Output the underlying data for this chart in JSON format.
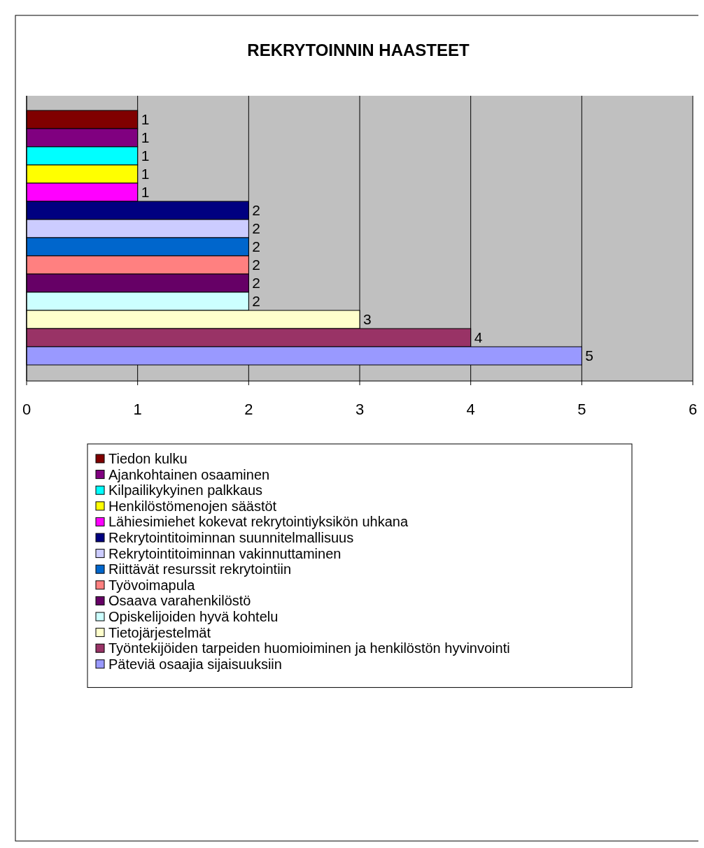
{
  "chart_data": {
    "type": "bar",
    "title": "REKRYTOINNIN HAASTEET",
    "orientation": "horizontal",
    "categories": [
      null
    ],
    "xlim": [
      0,
      6
    ],
    "xticks": [
      0,
      1,
      2,
      3,
      4,
      5,
      6
    ],
    "grid": "x",
    "legend": "bottom",
    "data_labels": true,
    "series": [
      {
        "name": "Tiedon kulku",
        "color": "#800000",
        "values": [
          1
        ]
      },
      {
        "name": "Ajankohtainen osaaminen",
        "color": "#800080",
        "values": [
          1
        ]
      },
      {
        "name": "Kilpailikykyinen palkkaus",
        "color": "#00ffff",
        "values": [
          1
        ]
      },
      {
        "name": "Henkilöstömenojen säästöt",
        "color": "#ffff00",
        "values": [
          1
        ]
      },
      {
        "name": "Lähiesimiehet kokevat rekrytointiyksikön uhkana",
        "color": "#ff00ff",
        "values": [
          1
        ]
      },
      {
        "name": "Rekrytointitoiminnan suunnitelmallisuus",
        "color": "#000080",
        "values": [
          2
        ]
      },
      {
        "name": "Rekrytointitoiminnan vakinnuttaminen",
        "color": "#ccccff",
        "values": [
          2
        ]
      },
      {
        "name": "Riittävät resurssit rekrytointiin",
        "color": "#0066cc",
        "values": [
          2
        ]
      },
      {
        "name": "Työvoimapula",
        "color": "#ff8080",
        "values": [
          2
        ]
      },
      {
        "name": "Osaava varahenkilöstö",
        "color": "#660066",
        "values": [
          2
        ]
      },
      {
        "name": "Opiskelijoiden hyvä kohtelu",
        "color": "#ccffff",
        "values": [
          2
        ]
      },
      {
        "name": "Tietojärjestelmät",
        "color": "#ffffcc",
        "values": [
          3
        ]
      },
      {
        "name": "Työntekijöiden tarpeiden huomioiminen ja henkilöstön hyvinvointi",
        "color": "#993366",
        "values": [
          4
        ]
      },
      {
        "name": "Päteviä osaajia sijaisuuksiin",
        "color": "#9999ff",
        "values": [
          5
        ]
      }
    ]
  }
}
